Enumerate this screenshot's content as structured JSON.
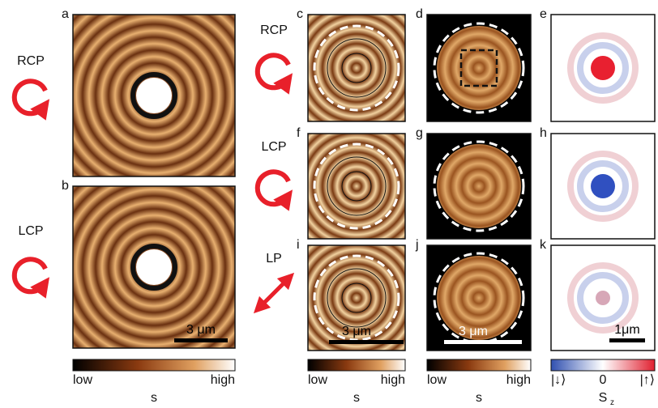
{
  "panels": [
    "a",
    "b",
    "c",
    "d",
    "e",
    "f",
    "g",
    "h",
    "i",
    "j",
    "k"
  ],
  "polarizations": {
    "left": [
      "RCP",
      "LCP"
    ],
    "middle": [
      "RCP",
      "LCP",
      "LP"
    ]
  },
  "scale_bars": [
    "3 μm",
    "3 μm",
    "3 μm",
    "1μm"
  ],
  "colorbars": [
    {
      "low": "low",
      "high": "high",
      "quantity": "s"
    },
    {
      "low": "low",
      "high": "high",
      "quantity": "s"
    },
    {
      "low": "low",
      "high": "high",
      "quantity": "s"
    },
    {
      "low": "|↓⟩",
      "mid": "0",
      "high": "|↑⟩",
      "quantity": "S",
      "subscript": "z"
    }
  ]
}
